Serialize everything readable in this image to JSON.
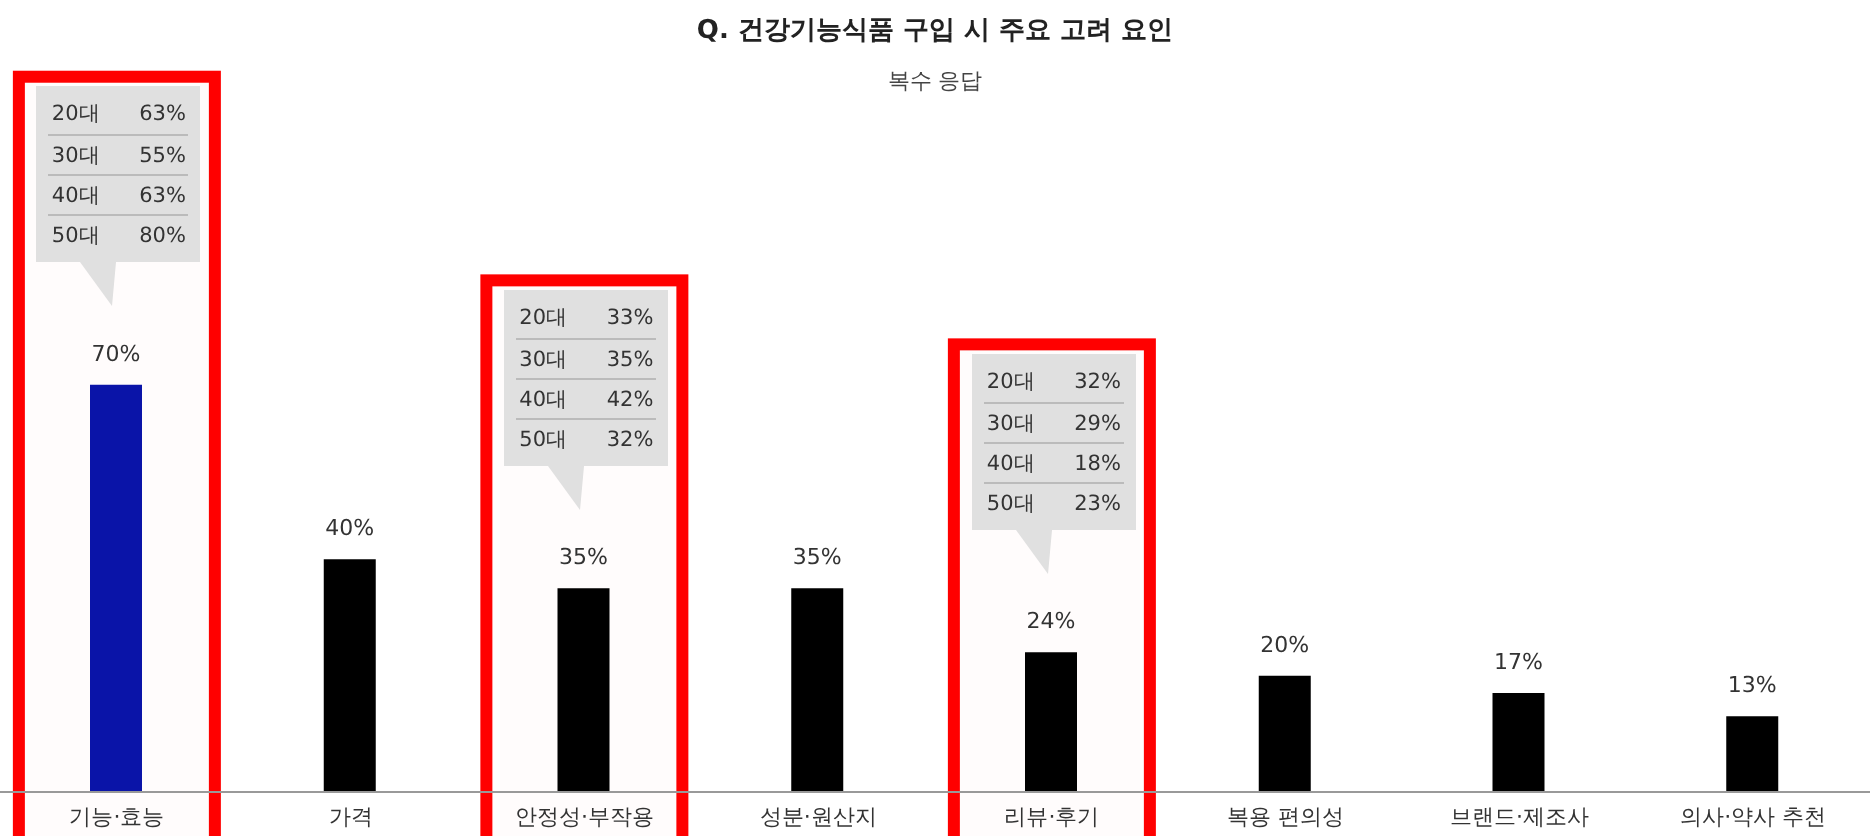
{
  "chart_data": {
    "type": "bar",
    "title": "Q. 건강기능식품 구입 시 주요 고려 요인",
    "subtitle": "복수 응답",
    "categories": [
      "기능·효능",
      "가격",
      "안정성·부작용",
      "성분·원산지",
      "리뷰·후기",
      "복용 편의성",
      "브랜드·제조사",
      "의사·약사 추천"
    ],
    "values": [
      70,
      40,
      35,
      35,
      24,
      20,
      17,
      13
    ],
    "value_labels": [
      "70%",
      "40%",
      "35%",
      "35%",
      "24%",
      "20%",
      "17%",
      "13%"
    ],
    "colors": [
      "#0a14a8",
      "#000000",
      "#000000",
      "#000000",
      "#000000",
      "#000000",
      "#000000",
      "#000000"
    ],
    "annotations": [
      "20대 63%",
      "30대 55%",
      "40대 63%",
      "50대 80%",
      "20대 33%",
      "30대 35%",
      "40대 42%",
      "50대 32%",
      "20대 32%",
      "30대 29%",
      "40대 18%",
      "50대 23%"
    ],
    "bands": [
      {
        "axis": "x",
        "from": "기능·효능",
        "to": "기능·효능",
        "color": "#ff0000"
      },
      {
        "axis": "x",
        "from": "안정성·부작용",
        "to": "안정성·부작용",
        "color": "#ff0000"
      },
      {
        "axis": "x",
        "from": "리뷰·후기",
        "to": "리뷰·후기",
        "color": "#ff0000"
      }
    ],
    "grid": false,
    "legend": false
  }
}
